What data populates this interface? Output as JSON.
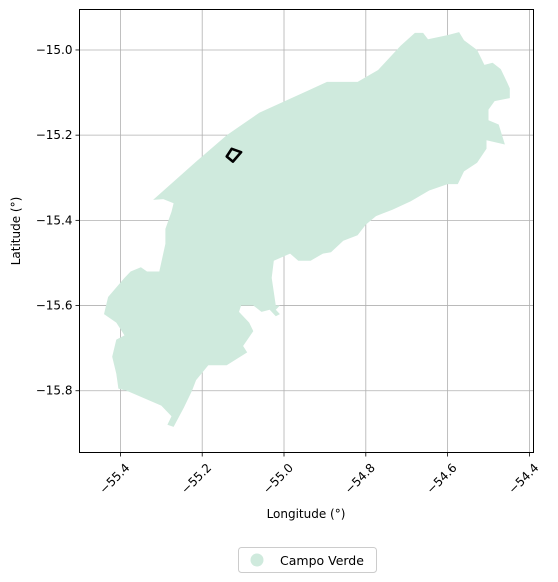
{
  "chart_data": {
    "type": "map",
    "xlabel": "Longitude (°)",
    "ylabel": "Latitude (°)",
    "xlim": [
      -55.5,
      -54.39
    ],
    "ylim": [
      -15.945,
      -14.905
    ],
    "x_ticks": [
      -55.4,
      -55.2,
      -55.0,
      -54.8,
      -54.6,
      -54.4
    ],
    "x_tick_labels": [
      "−55.4",
      "−55.2",
      "−55.0",
      "−54.8",
      "−54.6",
      "−54.4"
    ],
    "y_ticks": [
      -15.0,
      -15.2,
      -15.4,
      -15.6,
      -15.8
    ],
    "y_tick_labels": [
      "−15.0",
      "−15.2",
      "−15.4",
      "−15.6",
      "−15.8"
    ],
    "grid": true,
    "legend_position": "bottom-center",
    "series": [
      {
        "name": "Campo Verde",
        "color": "#cfeadd",
        "kind": "filled-polygon",
        "polygon": [
          [
            -55.32,
            -15.352
          ],
          [
            -55.215,
            -15.262
          ],
          [
            -55.14,
            -15.2
          ],
          [
            -55.06,
            -15.147
          ],
          [
            -54.94,
            -15.095
          ],
          [
            -54.895,
            -15.075
          ],
          [
            -54.82,
            -15.075
          ],
          [
            -54.77,
            -15.047
          ],
          [
            -54.715,
            -14.99
          ],
          [
            -54.68,
            -14.96
          ],
          [
            -54.66,
            -14.96
          ],
          [
            -54.648,
            -14.975
          ],
          [
            -54.6,
            -14.965
          ],
          [
            -54.572,
            -14.958
          ],
          [
            -54.56,
            -14.977
          ],
          [
            -54.528,
            -15.0
          ],
          [
            -54.51,
            -15.035
          ],
          [
            -54.49,
            -15.03
          ],
          [
            -54.47,
            -15.045
          ],
          [
            -54.455,
            -15.075
          ],
          [
            -54.448,
            -15.09
          ],
          [
            -54.448,
            -15.113
          ],
          [
            -54.485,
            -15.12
          ],
          [
            -54.5,
            -15.14
          ],
          [
            -54.5,
            -15.165
          ],
          [
            -54.475,
            -15.175
          ],
          [
            -54.46,
            -15.222
          ],
          [
            -54.505,
            -15.212
          ],
          [
            -54.505,
            -15.232
          ],
          [
            -54.528,
            -15.265
          ],
          [
            -54.56,
            -15.285
          ],
          [
            -54.575,
            -15.315
          ],
          [
            -54.6,
            -15.315
          ],
          [
            -54.645,
            -15.33
          ],
          [
            -54.69,
            -15.355
          ],
          [
            -54.735,
            -15.375
          ],
          [
            -54.775,
            -15.39
          ],
          [
            -54.8,
            -15.41
          ],
          [
            -54.82,
            -15.435
          ],
          [
            -54.855,
            -15.448
          ],
          [
            -54.885,
            -15.475
          ],
          [
            -54.905,
            -15.478
          ],
          [
            -54.935,
            -15.495
          ],
          [
            -54.965,
            -15.495
          ],
          [
            -54.985,
            -15.478
          ],
          [
            -55.025,
            -15.495
          ],
          [
            -55.03,
            -15.535
          ],
          [
            -55.02,
            -15.6
          ],
          [
            -55.01,
            -15.6
          ],
          [
            -55.02,
            -15.61
          ],
          [
            -55.01,
            -15.62
          ],
          [
            -55.02,
            -15.625
          ],
          [
            -55.035,
            -15.61
          ],
          [
            -55.055,
            -15.615
          ],
          [
            -55.075,
            -15.6
          ],
          [
            -55.105,
            -15.6
          ],
          [
            -55.11,
            -15.615
          ],
          [
            -55.085,
            -15.64
          ],
          [
            -55.075,
            -15.66
          ],
          [
            -55.1,
            -15.695
          ],
          [
            -55.09,
            -15.71
          ],
          [
            -55.14,
            -15.74
          ],
          [
            -55.185,
            -15.74
          ],
          [
            -55.215,
            -15.775
          ],
          [
            -55.225,
            -15.8
          ],
          [
            -55.245,
            -15.84
          ],
          [
            -55.27,
            -15.885
          ],
          [
            -55.285,
            -15.88
          ],
          [
            -55.275,
            -15.86
          ],
          [
            -55.3,
            -15.835
          ],
          [
            -55.385,
            -15.8
          ],
          [
            -55.405,
            -15.795
          ],
          [
            -55.41,
            -15.76
          ],
          [
            -55.42,
            -15.72
          ],
          [
            -55.41,
            -15.68
          ],
          [
            -55.39,
            -15.67
          ],
          [
            -55.41,
            -15.64
          ],
          [
            -55.44,
            -15.62
          ],
          [
            -55.43,
            -15.58
          ],
          [
            -55.39,
            -15.535
          ],
          [
            -55.375,
            -15.52
          ],
          [
            -55.35,
            -15.51
          ],
          [
            -55.335,
            -15.52
          ],
          [
            -55.305,
            -15.52
          ],
          [
            -55.29,
            -15.455
          ],
          [
            -55.29,
            -15.42
          ],
          [
            -55.275,
            -15.38
          ],
          [
            -55.27,
            -15.36
          ],
          [
            -55.295,
            -15.35
          ]
        ]
      },
      {
        "name": "",
        "color": "#000000",
        "kind": "outline-polygon",
        "polygon": [
          [
            -55.14,
            -15.25
          ],
          [
            -55.128,
            -15.232
          ],
          [
            -55.105,
            -15.24
          ],
          [
            -55.125,
            -15.262
          ]
        ]
      }
    ]
  },
  "legend": {
    "items": [
      {
        "label": "Campo Verde",
        "color": "#cfeadd"
      }
    ]
  }
}
